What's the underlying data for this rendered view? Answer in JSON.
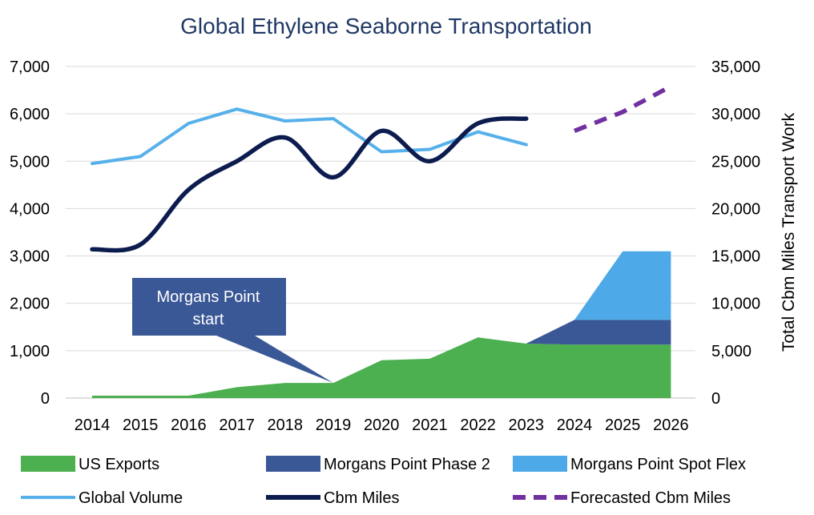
{
  "chart_data": {
    "type": "area",
    "title": "Global Ethylene Seaborne Transportation",
    "categories": [
      "2014",
      "2015",
      "2016",
      "2017",
      "2018",
      "2019",
      "2020",
      "2021",
      "2022",
      "2023",
      "2024",
      "2025",
      "2026"
    ],
    "y_left": {
      "ticks": [
        "0",
        "1,000",
        "2,000",
        "3,000",
        "4,000",
        "5,000",
        "6,000",
        "7,000"
      ],
      "ylim": [
        0,
        7000
      ]
    },
    "y_right": {
      "label": "Total Cbm Miles Transport Work",
      "ticks": [
        "0",
        "5,000",
        "10,000",
        "15,000",
        "20,000",
        "25,000",
        "30,000",
        "35,000"
      ],
      "ylim": [
        0,
        35000
      ]
    },
    "grid": true,
    "legend_position": "bottom",
    "series": [
      {
        "name": "US Exports",
        "type": "area",
        "axis": "left",
        "color": "#4CAF50",
        "values": [
          50,
          50,
          50,
          230,
          320,
          320,
          800,
          830,
          1280,
          1150,
          1130,
          1130,
          1130
        ]
      },
      {
        "name": "Morgans Point Phase 2",
        "type": "area",
        "axis": "left",
        "color": "#3a5796",
        "values": [
          0,
          0,
          0,
          0,
          0,
          0,
          0,
          0,
          0,
          0,
          520,
          520,
          520
        ]
      },
      {
        "name": "Morgans Point Spot Flex",
        "type": "area",
        "axis": "left",
        "color": "#4da9e8",
        "values": [
          0,
          0,
          0,
          0,
          0,
          0,
          0,
          0,
          0,
          0,
          0,
          1450,
          1450
        ]
      },
      {
        "name": "Global Volume",
        "type": "line",
        "axis": "left",
        "color": "#56b0ea",
        "values": [
          4950,
          5100,
          5800,
          6100,
          5850,
          5900,
          5200,
          5250,
          5620,
          5350,
          null,
          null,
          null
        ]
      },
      {
        "name": "Cbm Miles",
        "type": "line",
        "axis": "right",
        "color": "#0d1c4f",
        "values": [
          15700,
          16200,
          22000,
          25000,
          27500,
          23300,
          28200,
          25000,
          29000,
          29500,
          null,
          null,
          null
        ]
      },
      {
        "name": "Forecasted Cbm Miles",
        "type": "line",
        "axis": "right",
        "color": "#7030a0",
        "dashed": true,
        "values": [
          null,
          null,
          null,
          null,
          null,
          null,
          null,
          null,
          null,
          null,
          28200,
          30200,
          32900
        ]
      }
    ],
    "annotations": [
      {
        "text": "Morgans Point start",
        "category": "2019"
      }
    ]
  },
  "legend": [
    {
      "label": "US Exports",
      "swatch": "area",
      "color": "#4CAF50"
    },
    {
      "label": "Morgans Point Phase 2",
      "swatch": "area",
      "color": "#3a5796"
    },
    {
      "label": "Morgans Point Spot Flex",
      "swatch": "area",
      "color": "#4da9e8"
    },
    {
      "label": "Global Volume",
      "swatch": "line",
      "color": "#56b0ea"
    },
    {
      "label": "Cbm Miles",
      "swatch": "line",
      "color": "#0d1c4f"
    },
    {
      "label": "Forecasted Cbm Miles",
      "swatch": "dashed",
      "color": "#7030a0"
    }
  ],
  "callout": {
    "line1": "Morgans Point",
    "line2": "start",
    "color": "#3a5796"
  }
}
